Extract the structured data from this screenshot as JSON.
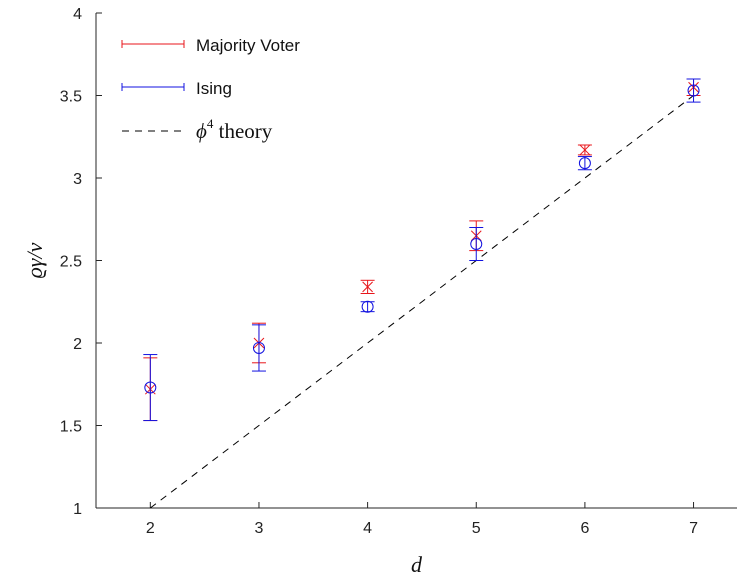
{
  "chart_data": {
    "type": "scatter",
    "xlabel": "d",
    "ylabel": "ϱγ/ν",
    "xlim": [
      1.5,
      7.4
    ],
    "ylim": [
      1,
      4
    ],
    "x_ticks": [
      "2",
      "3",
      "4",
      "5",
      "6",
      "7"
    ],
    "y_ticks": [
      "1",
      "1.5",
      "2",
      "2.5",
      "3",
      "3.5",
      "4"
    ],
    "grid": false,
    "legend_position": "top-left",
    "series": [
      {
        "name": "Majority Voter",
        "marker": "x",
        "color": "#e8161b",
        "x": [
          2,
          3,
          4,
          5,
          6,
          7
        ],
        "y": [
          1.72,
          2.0,
          2.34,
          2.65,
          3.17,
          3.55
        ],
        "err": [
          0.19,
          0.12,
          0.04,
          0.09,
          0.03,
          0.05
        ]
      },
      {
        "name": "Ising",
        "marker": "o",
        "color": "#1212e0",
        "x": [
          2,
          3,
          4,
          5,
          6,
          7
        ],
        "y": [
          1.73,
          1.97,
          2.22,
          2.6,
          3.09,
          3.53
        ],
        "err": [
          0.2,
          0.14,
          0.03,
          0.1,
          0.04,
          0.07
        ]
      }
    ],
    "reference_line": {
      "name": "ϕ⁴ theory",
      "style": "dashed",
      "color": "#000000",
      "x": [
        2,
        7
      ],
      "y": [
        1,
        3.5
      ]
    }
  },
  "legend": {
    "majority_label": "Majority Voter",
    "ising_label": "Ising",
    "theory_phi": "ϕ",
    "theory_exp": "4",
    "theory_rest": " theory"
  }
}
